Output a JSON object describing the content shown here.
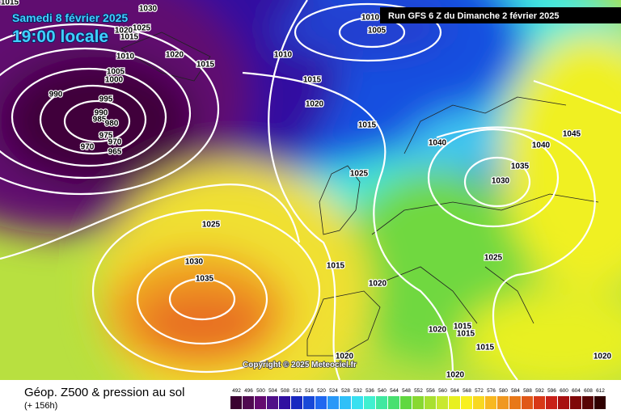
{
  "header": {
    "date": "Samedi 8 février 2025",
    "time": "19:00 locale",
    "run": "Run GFS 6 Z du Dimanche 2 février 2025"
  },
  "copyright": "Copyright © 2025 Meteociel.fr",
  "footer": {
    "title": "Géop. Z500 & pression au sol",
    "lead": "(+ 156h)"
  },
  "isobar_labels": [
    "1015",
    "1030",
    "1025",
    "1020",
    "1015",
    "1010",
    "1020",
    "1015",
    "1010",
    "1010",
    "1005",
    "1005",
    "1000",
    "990",
    "995",
    "990",
    "985",
    "980",
    "975",
    "970",
    "965",
    "970",
    "1015",
    "1020",
    "1015",
    "1040",
    "1045",
    "1040",
    "1035",
    "1030",
    "1025",
    "1025",
    "1030",
    "1035",
    "1015",
    "1020",
    "1025",
    "1020",
    "1015",
    "1015",
    "1015",
    "1020",
    "1020",
    "1020"
  ],
  "scale": {
    "labels": [
      492,
      496,
      500,
      504,
      508,
      512,
      516,
      520,
      524,
      528,
      532,
      536,
      540,
      544,
      548,
      552,
      556,
      560,
      564,
      568,
      572,
      576,
      580,
      584,
      588,
      592,
      596,
      600,
      604,
      608,
      612
    ],
    "colors": [
      "#3a0030",
      "#500a50",
      "#640a70",
      "#501088",
      "#3010a0",
      "#1828c0",
      "#1848d8",
      "#2068f0",
      "#2898f8",
      "#30c0f8",
      "#38e0f0",
      "#40f0d0",
      "#40e8a0",
      "#48e070",
      "#60d840",
      "#88d830",
      "#a8e030",
      "#c8e830",
      "#e8f020",
      "#f8f020",
      "#f8d820",
      "#f8b820",
      "#f09820",
      "#e87818",
      "#e05818",
      "#d83818",
      "#c82018",
      "#a81010",
      "#800808",
      "#580404",
      "#300000"
    ]
  }
}
